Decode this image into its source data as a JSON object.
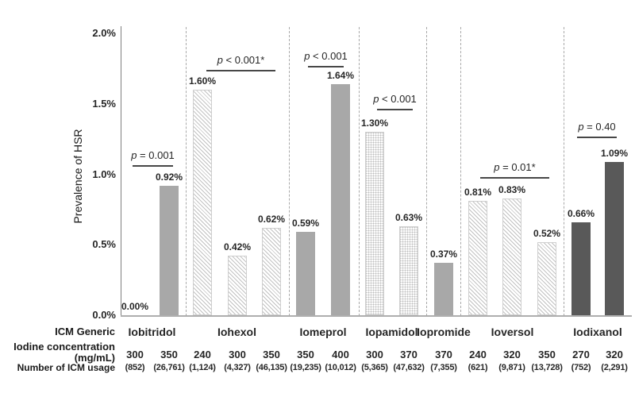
{
  "chart_data": {
    "type": "bar",
    "title": "",
    "ylabel": "Prevalence of HSR",
    "ylim": [
      0,
      2.0
    ],
    "yticks": [
      {
        "label": "0.0%",
        "value": 0.0
      },
      {
        "label": "0.5%",
        "value": 0.5
      },
      {
        "label": "1.0%",
        "value": 1.0
      },
      {
        "label": "1.5%",
        "value": 1.5
      },
      {
        "label": "2.0%",
        "value": 2.0
      }
    ],
    "grid": "off",
    "legend": "none",
    "row_headers": {
      "generic": "ICM Generic",
      "concentration_line1": "Iodine concentration",
      "concentration_line2": "(mg/mL)",
      "usage": "Number of ICM usage"
    },
    "groups": [
      {
        "generic": "Iobitridol",
        "p_label": "p = 0.001",
        "bars": [
          {
            "concentration": "300",
            "usage": "(852)",
            "value": 0.0,
            "label": "0.00%",
            "style": "solid"
          },
          {
            "concentration": "350",
            "usage": "(26,761)",
            "value": 0.92,
            "label": "0.92%",
            "style": "solid"
          }
        ]
      },
      {
        "generic": "Iohexol",
        "p_label": "p < 0.001*",
        "bars": [
          {
            "concentration": "240",
            "usage": "(1,124)",
            "value": 1.6,
            "label": "1.60%",
            "style": "hatch"
          },
          {
            "concentration": "300",
            "usage": "(4,327)",
            "value": 0.42,
            "label": "0.42%",
            "style": "hatch"
          },
          {
            "concentration": "350",
            "usage": "(46,135)",
            "value": 0.62,
            "label": "0.62%",
            "style": "hatch"
          }
        ]
      },
      {
        "generic": "Iomeprol",
        "p_label": "p < 0.001",
        "bars": [
          {
            "concentration": "350",
            "usage": "(19,235)",
            "value": 0.59,
            "label": "0.59%",
            "style": "solid"
          },
          {
            "concentration": "400",
            "usage": "(10,012)",
            "value": 1.64,
            "label": "1.64%",
            "style": "solid"
          }
        ]
      },
      {
        "generic": "Iopamidol",
        "p_label": "p < 0.001",
        "bars": [
          {
            "concentration": "300",
            "usage": "(5,365)",
            "value": 1.3,
            "label": "1.30%",
            "style": "dots"
          },
          {
            "concentration": "370",
            "usage": "(47,632)",
            "value": 0.63,
            "label": "0.63%",
            "style": "dots"
          }
        ]
      },
      {
        "generic": "Iopromide",
        "p_label": null,
        "bars": [
          {
            "concentration": "370",
            "usage": "(7,355)",
            "value": 0.37,
            "label": "0.37%",
            "style": "solid"
          }
        ]
      },
      {
        "generic": "Ioversol",
        "p_label": "p = 0.01*",
        "bars": [
          {
            "concentration": "240",
            "usage": "(621)",
            "value": 0.81,
            "label": "0.81%",
            "style": "hatch"
          },
          {
            "concentration": "320",
            "usage": "(9,871)",
            "value": 0.83,
            "label": "0.83%",
            "style": "hatch"
          },
          {
            "concentration": "350",
            "usage": "(13,728)",
            "value": 0.52,
            "label": "0.52%",
            "style": "hatch"
          }
        ]
      },
      {
        "generic": "Iodixanol",
        "p_label": "p = 0.40",
        "bars": [
          {
            "concentration": "270",
            "usage": "(752)",
            "value": 0.66,
            "label": "0.66%",
            "style": "dark"
          },
          {
            "concentration": "320",
            "usage": "(2,291)",
            "value": 1.09,
            "label": "1.09%",
            "style": "dark"
          }
        ]
      }
    ],
    "colors": {
      "bar_solid": "#a8a8a8",
      "bar_dark": "#595959",
      "bar_pattern_line": "#c2c2c2",
      "axis": "#7f7f7f",
      "baseline": "#aeaeae",
      "separator": "#a9a9a9",
      "annotation_line": "#474747",
      "text": "#262626"
    }
  }
}
